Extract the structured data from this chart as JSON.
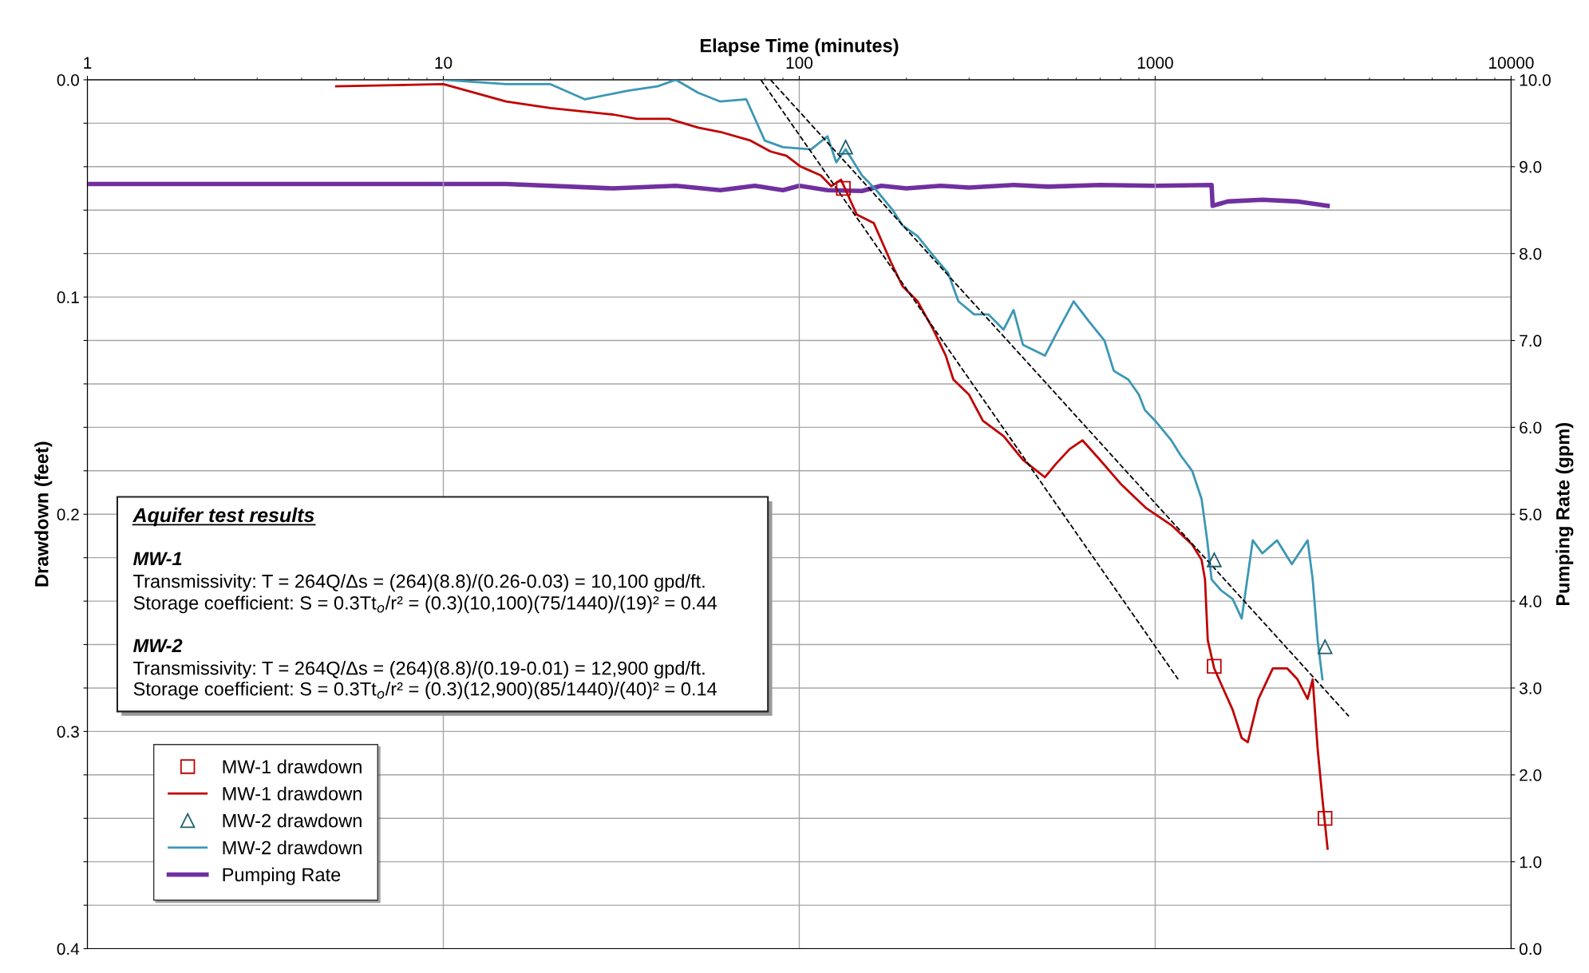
{
  "chart_data": {
    "type": "line",
    "xlabel": "Elapse Time (minutes)",
    "ylabel": "Drawdown (feet)",
    "y2label": "Pumping Rate (gpm)",
    "log": "x",
    "xlim": [
      1,
      10000
    ],
    "xticks": [
      1,
      10,
      100,
      1000,
      10000
    ],
    "ylim": [
      0.4,
      0.0
    ],
    "yticks": [
      {
        "value": 0.0,
        "label": "0.0"
      },
      {
        "value": 0.02,
        "label": null
      },
      {
        "value": 0.04,
        "label": null
      },
      {
        "value": 0.06,
        "label": null
      },
      {
        "value": 0.08,
        "label": null
      },
      {
        "value": 0.1,
        "label": "0.1"
      },
      {
        "value": 0.12,
        "label": null
      },
      {
        "value": 0.14,
        "label": null
      },
      {
        "value": 0.16,
        "label": null
      },
      {
        "value": 0.18,
        "label": null
      },
      {
        "value": 0.2,
        "label": "0.2"
      },
      {
        "value": 0.22,
        "label": null
      },
      {
        "value": 0.24,
        "label": null
      },
      {
        "value": 0.26,
        "label": null
      },
      {
        "value": 0.28,
        "label": null
      },
      {
        "value": 0.3,
        "label": "0.3"
      },
      {
        "value": 0.32,
        "label": null
      },
      {
        "value": 0.34,
        "label": null
      },
      {
        "value": 0.36,
        "label": null
      },
      {
        "value": 0.38,
        "label": null
      },
      {
        "value": 0.4,
        "label": "0.4"
      }
    ],
    "y2lim": [
      0,
      10
    ],
    "y2ticks": [
      {
        "value": 0,
        "label": "0.0"
      },
      {
        "value": 1,
        "label": "1.0"
      },
      {
        "value": 2,
        "label": "2.0"
      },
      {
        "value": 3,
        "label": "3.0"
      },
      {
        "value": 4,
        "label": "4.0"
      },
      {
        "value": 5,
        "label": "5.0"
      },
      {
        "value": 6,
        "label": "6.0"
      },
      {
        "value": 7,
        "label": "7.0"
      },
      {
        "value": 8,
        "label": "8.0"
      },
      {
        "value": 9,
        "label": "9.0"
      },
      {
        "value": 10,
        "label": "10.0"
      }
    ],
    "grid": true,
    "legend": "bottom left",
    "series": [
      {
        "name": "MW-1 drawdown",
        "type": "scatter",
        "marker": "square",
        "color": "#c00000",
        "x": [
          133,
          1465,
          3000
        ],
        "values": [
          0.05,
          0.27,
          0.34
        ]
      },
      {
        "name": "MW-1 drawdown",
        "color": "#c00000",
        "x": [
          5,
          10,
          15,
          20,
          30,
          35,
          43,
          52,
          60,
          73,
          83,
          92,
          101,
          115,
          123,
          131,
          145,
          162,
          181,
          195,
          215,
          238,
          258,
          271,
          300,
          328,
          375,
          425,
          490,
          525,
          575,
          625,
          700,
          800,
          940,
          1110,
          1270,
          1350,
          1380,
          1405,
          1465,
          1530,
          1650,
          1750,
          1820,
          1950,
          2140,
          2350,
          2510,
          2680,
          2770,
          2860,
          2950,
          3050
        ],
        "values": [
          0.003,
          0.002,
          0.01,
          0.013,
          0.016,
          0.018,
          0.018,
          0.022,
          0.024,
          0.028,
          0.033,
          0.035,
          0.04,
          0.044,
          0.049,
          0.046,
          0.062,
          0.066,
          0.084,
          0.095,
          0.102,
          0.115,
          0.127,
          0.138,
          0.145,
          0.157,
          0.164,
          0.175,
          0.183,
          0.177,
          0.17,
          0.166,
          0.175,
          0.186,
          0.197,
          0.205,
          0.214,
          0.221,
          0.23,
          0.258,
          0.271,
          0.278,
          0.29,
          0.303,
          0.305,
          0.285,
          0.271,
          0.271,
          0.276,
          0.285,
          0.276,
          0.308,
          0.331,
          0.354
        ]
      },
      {
        "name": "MW-2 drawdown",
        "type": "scatter",
        "marker": "triangle",
        "color": "#1f5f6f",
        "x": [
          135,
          1465,
          3000
        ],
        "values": [
          0.031,
          0.221,
          0.261
        ]
      },
      {
        "name": "MW-2 drawdown",
        "color": "#3b97b5",
        "x": [
          10,
          15,
          20,
          25,
          33,
          40,
          45,
          52,
          60,
          71,
          80,
          90,
          108,
          120,
          127,
          135,
          150,
          165,
          183,
          195,
          215,
          238,
          262,
          280,
          310,
          340,
          375,
          400,
          425,
          490,
          535,
          590,
          650,
          720,
          765,
          840,
          900,
          935,
          1000,
          1110,
          1180,
          1270,
          1350,
          1400,
          1440,
          1530,
          1650,
          1750,
          1880,
          2000,
          2200,
          2420,
          2680,
          2770,
          2860,
          2950
        ],
        "values": [
          0.0,
          0.002,
          0.002,
          0.009,
          0.005,
          0.003,
          0.0,
          0.006,
          0.01,
          0.009,
          0.028,
          0.031,
          0.032,
          0.026,
          0.038,
          0.032,
          0.044,
          0.051,
          0.06,
          0.067,
          0.072,
          0.081,
          0.089,
          0.102,
          0.108,
          0.108,
          0.115,
          0.106,
          0.122,
          0.127,
          0.115,
          0.102,
          0.111,
          0.12,
          0.134,
          0.138,
          0.145,
          0.152,
          0.157,
          0.166,
          0.173,
          0.18,
          0.193,
          0.212,
          0.23,
          0.235,
          0.239,
          0.248,
          0.212,
          0.218,
          0.212,
          0.223,
          0.212,
          0.23,
          0.258,
          0.276
        ]
      },
      {
        "name": "Pumping Rate",
        "axis": "y2",
        "color": "#7030a0",
        "x": [
          1,
          15,
          30,
          45,
          60,
          75,
          90,
          100,
          120,
          150,
          170,
          200,
          250,
          300,
          400,
          500,
          700,
          1000,
          1440,
          1450,
          1600,
          2000,
          2500,
          3050
        ],
        "values": [
          8.8,
          8.8,
          8.75,
          8.78,
          8.73,
          8.78,
          8.73,
          8.78,
          8.73,
          8.72,
          8.78,
          8.75,
          8.78,
          8.76,
          8.79,
          8.77,
          8.79,
          8.78,
          8.79,
          8.55,
          8.6,
          8.62,
          8.6,
          8.55
        ]
      },
      {
        "line_style": "dashed",
        "color": "#000000",
        "x": [
          78,
          1160
        ],
        "values": [
          0.0,
          0.276
        ]
      },
      {
        "line_style": "dashed",
        "color": "#000000",
        "x": [
          83,
          3500
        ],
        "values": [
          0.0,
          0.293
        ]
      }
    ],
    "annotations": [
      "Aquifer test results",
      "MW-1",
      "Transmissivity: T = 264Q/Δs = (264)(8.8)/(0.26-0.03) = 10,100 gpd/ft.",
      "Storage coefficient: S = 0.3Tt$_{o}$/r² = (0.3)(10,100)(75/1440)/(19)² = 0.44",
      "MW-2",
      "Transmissivity: T = 264Q/Δs = (264)(8.8)/(0.19-0.01) = 12,900 gpd/ft.",
      "Storage coefficient: S = 0.3Tt$_{o}$/r² = (0.3)(12,900)(85/1440)/(40)² = 0.14"
    ]
  }
}
